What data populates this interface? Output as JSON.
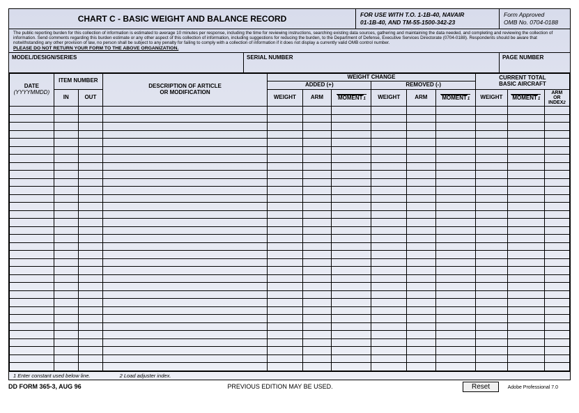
{
  "header": {
    "title": "CHART C - BASIC WEIGHT AND BALANCE RECORD",
    "use_with_line1": "FOR USE WITH T.O. 1-1B-40, NAVAIR",
    "use_with_line2": "01-1B-40, AND  TM-55-1500-342-23",
    "approved_line1": "Form Approved",
    "approved_line2": "OMB No. 0704-0188",
    "burden": "The public reporting burden for this collection of information is estimated to average 10 minutes per response, including the time for reviewing instructions, searching existing data sources, gathering and maintaining the data needed, and completing and reviewing the collection of information.  Send comments regarding this burden estimate or any other aspect of this collection of information, including suggestions for reducing the burden, to the Department of Defense, Executive Services Directorate (0704-0188). Respondents should be aware that notwithstanding any other provision of law, no person shall be subject to any penalty for failing to comply with a collection of information if it does not display a currently valid OMB control number.",
    "no_return": "PLEASE DO NOT RETURN YOUR FORM TO THE ABOVE ORGANIZATION.",
    "model_label": "MODEL/DESIGN/SERIES",
    "serial_label": "SERIAL NUMBER",
    "page_label": "PAGE NUMBER"
  },
  "cols": {
    "date": "DATE",
    "date_sub": "(YYYYMMDD)",
    "item_number": "ITEM NUMBER",
    "in": "IN",
    "out": "OUT",
    "desc1": "DESCRIPTION OF ARTICLE",
    "desc2": "OR MODIFICATION",
    "weight_change": "WEIGHT CHANGE",
    "added": "ADDED (+)",
    "removed": "REMOVED (-)",
    "weight": "WEIGHT",
    "arm": "ARM",
    "moment": "MOMENT",
    "moment_sub": "1",
    "current_total1": "CURRENT TOTAL",
    "current_total2": "BASIC AIRCRAFT",
    "arm_or_index": "ARM OR INDEX",
    "index_sub": "2"
  },
  "footnotes": {
    "f1": "1 Enter constant used below line.",
    "f2": "2 Load adjuster index."
  },
  "footer": {
    "form_id": "DD FORM 365-3, AUG 96",
    "prev": "PREVIOUS EDITION MAY BE USED.",
    "reset": "Reset",
    "adobe": "Adobe Professional 7.0"
  },
  "layout": {
    "data_rows": 33
  }
}
